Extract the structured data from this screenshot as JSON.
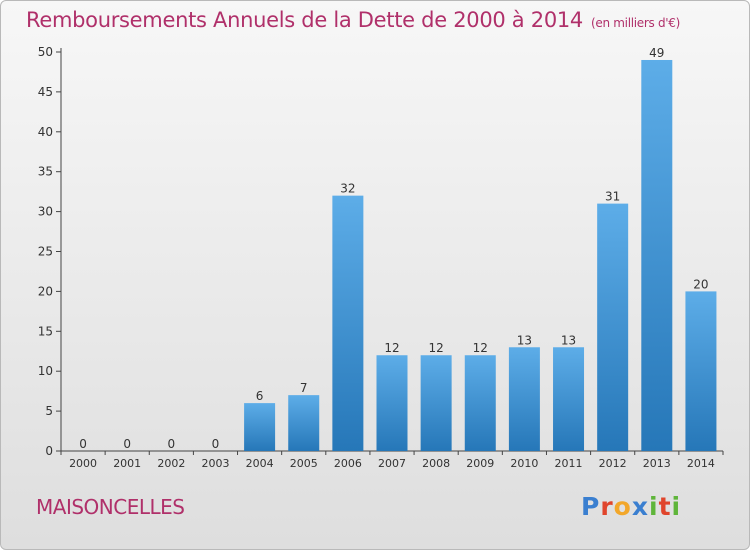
{
  "title": "Remboursements Annuels de la Dette de 2000 à 2014",
  "subtitle": "(en milliers d'€)",
  "commune": "MAISONCELLES",
  "logo": {
    "letters": [
      "P",
      "r",
      "o",
      "x",
      "i",
      "t",
      "i"
    ],
    "colors": [
      "#3a7fd0",
      "#e0452c",
      "#f2a72a",
      "#3a7fd0",
      "#5fb53a",
      "#e0452c",
      "#5fb53a"
    ]
  },
  "colors": {
    "title": "#b0306a",
    "bar_light": "#5dade8",
    "bar_dark": "#2677b8",
    "axis": "#333333"
  },
  "chart_data": {
    "type": "bar",
    "categories": [
      "2000",
      "2001",
      "2002",
      "2003",
      "2004",
      "2005",
      "2006",
      "2007",
      "2008",
      "2009",
      "2010",
      "2011",
      "2012",
      "2013",
      "2014"
    ],
    "values": [
      0,
      0,
      0,
      0,
      6,
      7,
      32,
      12,
      12,
      12,
      13,
      13,
      31,
      49,
      20
    ],
    "ylim": [
      0,
      50
    ],
    "yticks": [
      0,
      5,
      10,
      15,
      20,
      25,
      30,
      35,
      40,
      45,
      50
    ],
    "grid": false,
    "data_labels": true
  }
}
